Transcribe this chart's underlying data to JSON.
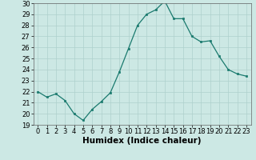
{
  "x": [
    0,
    1,
    2,
    3,
    4,
    5,
    6,
    7,
    8,
    9,
    10,
    11,
    12,
    13,
    14,
    15,
    16,
    17,
    18,
    19,
    20,
    21,
    22,
    23
  ],
  "y": [
    22,
    21.5,
    21.8,
    21.2,
    20.0,
    19.4,
    20.4,
    21.1,
    21.9,
    23.8,
    25.9,
    28.0,
    29.0,
    29.4,
    30.2,
    28.6,
    28.6,
    27.0,
    26.5,
    26.6,
    25.2,
    24.0,
    23.6,
    23.4
  ],
  "line_color": "#1a7a6e",
  "marker_color": "#1a7a6e",
  "bg_color": "#cce8e4",
  "grid_color": "#aed0cc",
  "xlabel": "Humidex (Indice chaleur)",
  "xlim": [
    -0.5,
    23.5
  ],
  "ylim": [
    19,
    30
  ],
  "yticks": [
    19,
    20,
    21,
    22,
    23,
    24,
    25,
    26,
    27,
    28,
    29,
    30
  ],
  "xticks": [
    0,
    1,
    2,
    3,
    4,
    5,
    6,
    7,
    8,
    9,
    10,
    11,
    12,
    13,
    14,
    15,
    16,
    17,
    18,
    19,
    20,
    21,
    22,
    23
  ],
  "tick_label_fontsize": 6,
  "xlabel_fontsize": 7.5
}
